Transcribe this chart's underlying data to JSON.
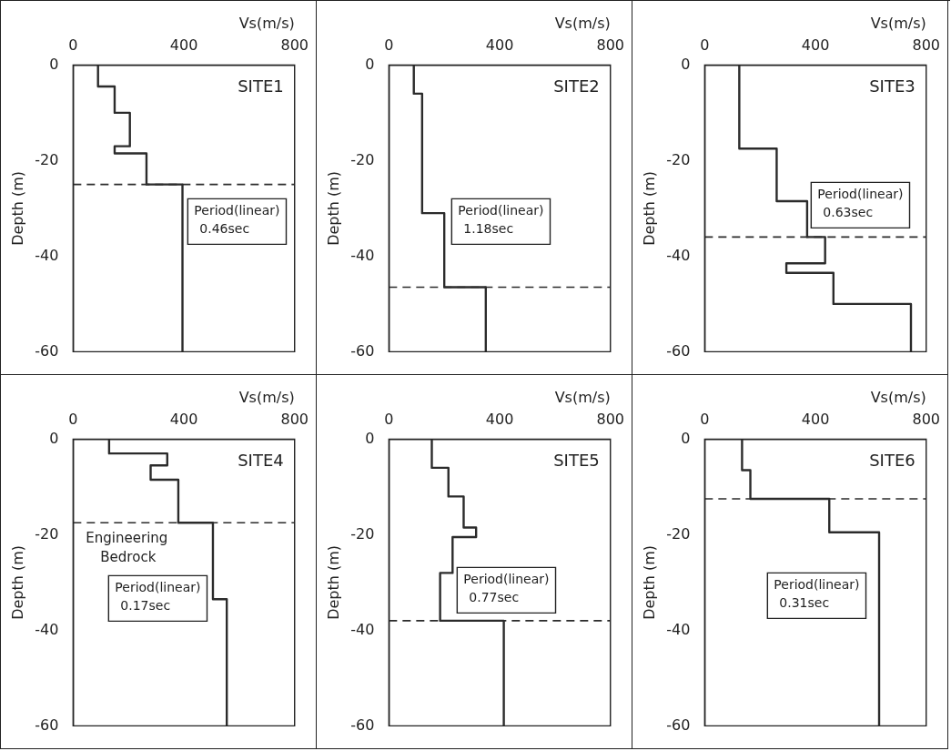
{
  "chart_data": [
    {
      "type": "line",
      "xlabel": "Vs(m/s)",
      "ylabel": "Depth (m)",
      "xlim": [
        0,
        800
      ],
      "xticks": [
        0,
        400,
        800
      ],
      "ylim": [
        -60,
        0
      ],
      "yticks": [
        -60,
        -40,
        -20,
        0
      ],
      "grid": false,
      "legend": false,
      "marker": "none",
      "line_style": "solid",
      "series": [
        {
          "color": "#2b2b2b",
          "x": [
            90,
            90,
            150,
            150,
            205,
            205,
            150,
            150,
            265,
            265,
            395,
            395
          ],
          "values": [
            0,
            -4.5,
            -4.5,
            -10,
            -10,
            -17,
            -17,
            -18.5,
            -18.5,
            -25,
            -25,
            -60
          ]
        }
      ],
      "ref_lines": [
        {
          "axis": "y",
          "value": -25,
          "color": "#2b2b2b",
          "line_style": "dashed"
        }
      ],
      "annotations": [
        "SITE1",
        "Period(linear)\n0.46sec"
      ]
    },
    {
      "type": "line",
      "xlabel": "Vs(m/s)",
      "ylabel": "Depth (m)",
      "xlim": [
        0,
        800
      ],
      "xticks": [
        0,
        400,
        800
      ],
      "ylim": [
        -60,
        0
      ],
      "yticks": [
        -60,
        -40,
        -20,
        0
      ],
      "grid": false,
      "legend": false,
      "marker": "none",
      "line_style": "solid",
      "series": [
        {
          "color": "#2b2b2b",
          "x": [
            90,
            90,
            120,
            120,
            200,
            200,
            350,
            350
          ],
          "values": [
            0,
            -6,
            -6,
            -31,
            -31,
            -46.5,
            -46.5,
            -60
          ]
        }
      ],
      "ref_lines": [
        {
          "axis": "y",
          "value": -46.5,
          "color": "#2b2b2b",
          "line_style": "dashed"
        }
      ],
      "annotations": [
        "SITE2",
        "Period(linear)\n1.18sec"
      ]
    },
    {
      "type": "line",
      "xlabel": "Vs(m/s)",
      "ylabel": "Depth (m)",
      "xlim": [
        0,
        800
      ],
      "xticks": [
        0,
        400,
        800
      ],
      "ylim": [
        -60,
        0
      ],
      "yticks": [
        -60,
        -40,
        -20,
        0
      ],
      "grid": false,
      "legend": false,
      "marker": "none",
      "line_style": "solid",
      "series": [
        {
          "color": "#2b2b2b",
          "x": [
            125,
            125,
            260,
            260,
            370,
            370,
            435,
            435,
            295,
            295,
            465,
            465,
            745,
            745
          ],
          "values": [
            0,
            -17.5,
            -17.5,
            -28.5,
            -28.5,
            -36,
            -36,
            -41.5,
            -41.5,
            -43.5,
            -43.5,
            -50,
            -50,
            -60
          ]
        }
      ],
      "ref_lines": [
        {
          "axis": "y",
          "value": -36,
          "color": "#2b2b2b",
          "line_style": "dashed"
        }
      ],
      "annotations": [
        "SITE3",
        "Period(linear)\n0.63sec"
      ]
    },
    {
      "type": "line",
      "xlabel": "Vs(m/s)",
      "ylabel": "Depth (m)",
      "xlim": [
        0,
        800
      ],
      "xticks": [
        0,
        400,
        800
      ],
      "ylim": [
        -60,
        0
      ],
      "yticks": [
        -60,
        -40,
        -20,
        0
      ],
      "grid": false,
      "legend": false,
      "marker": "none",
      "line_style": "solid",
      "series": [
        {
          "color": "#2b2b2b",
          "x": [
            130,
            130,
            340,
            340,
            280,
            280,
            380,
            380,
            505,
            505,
            555,
            555
          ],
          "values": [
            0,
            -3,
            -3,
            -5.5,
            -5.5,
            -8.5,
            -8.5,
            -17.5,
            -17.5,
            -33.5,
            -33.5,
            -60
          ]
        }
      ],
      "ref_lines": [
        {
          "axis": "y",
          "value": -17.5,
          "color": "#2b2b2b",
          "line_style": "dashed",
          "label": "Engineering\nBedrock"
        }
      ],
      "annotations": [
        "SITE4",
        "Period(linear)\n0.17sec"
      ]
    },
    {
      "type": "line",
      "xlabel": "Vs(m/s)",
      "ylabel": "Depth (m)",
      "xlim": [
        0,
        800
      ],
      "xticks": [
        0,
        400,
        800
      ],
      "ylim": [
        -60,
        0
      ],
      "yticks": [
        -60,
        -40,
        -20,
        0
      ],
      "grid": false,
      "legend": false,
      "marker": "none",
      "line_style": "solid",
      "series": [
        {
          "color": "#2b2b2b",
          "x": [
            155,
            155,
            215,
            215,
            270,
            270,
            315,
            315,
            230,
            230,
            185,
            185,
            415,
            415
          ],
          "values": [
            0,
            -6,
            -6,
            -12,
            -12,
            -18.5,
            -18.5,
            -20.5,
            -20.5,
            -28,
            -28,
            -38,
            -38,
            -60
          ]
        }
      ],
      "ref_lines": [
        {
          "axis": "y",
          "value": -38,
          "color": "#2b2b2b",
          "line_style": "dashed"
        }
      ],
      "annotations": [
        "SITE5",
        "Period(linear)\n0.77sec"
      ]
    },
    {
      "type": "line",
      "xlabel": "Vs(m/s)",
      "ylabel": "Depth (m)",
      "xlim": [
        0,
        800
      ],
      "xticks": [
        0,
        400,
        800
      ],
      "ylim": [
        -60,
        0
      ],
      "yticks": [
        -60,
        -40,
        -20,
        0
      ],
      "grid": false,
      "legend": false,
      "marker": "none",
      "line_style": "solid",
      "series": [
        {
          "color": "#2b2b2b",
          "x": [
            135,
            135,
            165,
            165,
            450,
            450,
            630,
            630
          ],
          "values": [
            0,
            -6.5,
            -6.5,
            -12.5,
            -12.5,
            -19.5,
            -19.5,
            -60
          ]
        }
      ],
      "ref_lines": [
        {
          "axis": "y",
          "value": -12.5,
          "color": "#2b2b2b",
          "line_style": "dashed"
        }
      ],
      "annotations": [
        "SITE6",
        "Period(linear)\n0.31sec"
      ]
    }
  ]
}
